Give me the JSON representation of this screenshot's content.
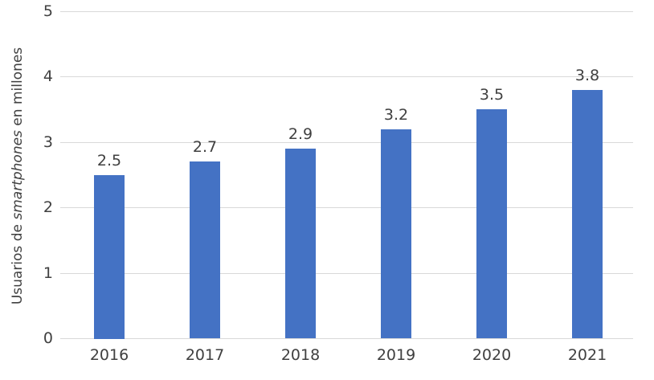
{
  "chart_data": {
    "type": "bar",
    "categories": [
      "2016",
      "2017",
      "2018",
      "2019",
      "2020",
      "2021"
    ],
    "values": [
      2.5,
      2.7,
      2.9,
      3.2,
      3.5,
      3.8
    ],
    "data_labels": [
      "2.5",
      "2.7",
      "2.9",
      "3.2",
      "3.5",
      "3.8"
    ],
    "title": "",
    "xlabel": "",
    "ylabel": "Usuarios de smartphones en millones",
    "ylabel_parts": [
      {
        "text": "Usuarios de ",
        "italic": false
      },
      {
        "text": "smartphones",
        "italic": true
      },
      {
        "text": " en millones",
        "italic": false
      }
    ],
    "ylim": [
      0,
      5
    ],
    "yticks": [
      "0",
      "1",
      "2",
      "3",
      "4",
      "5"
    ],
    "grid": true,
    "legend": "none",
    "colors": {
      "bar": "#4472C4",
      "gridline": "#D9D9D9",
      "axis_line": "#D9D9D9",
      "text": "#404040",
      "background": "#FFFFFF"
    }
  }
}
